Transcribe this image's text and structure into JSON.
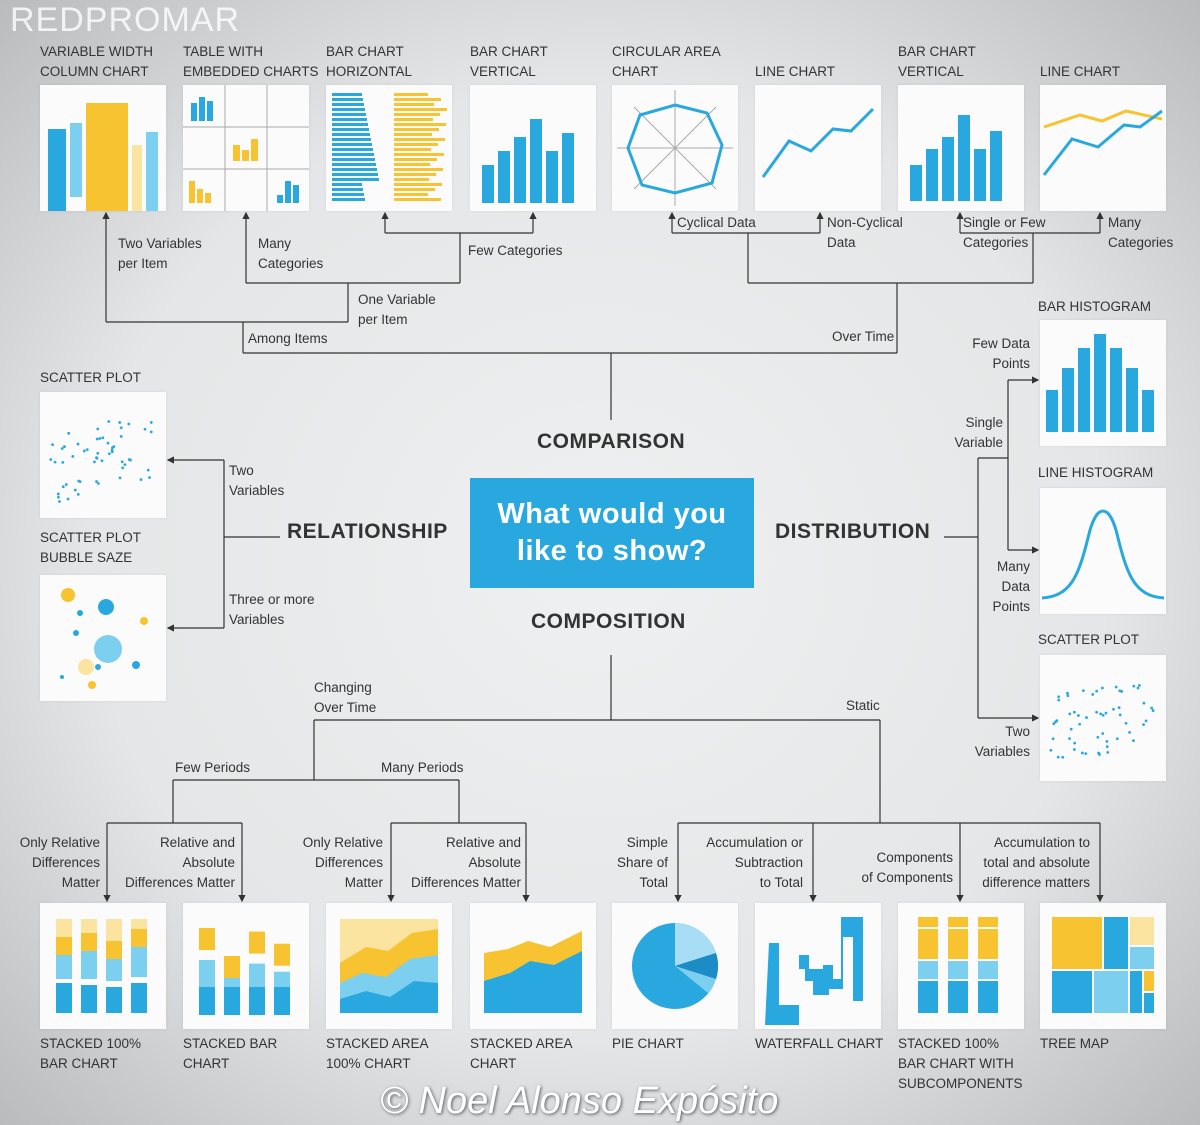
{
  "watermark": {
    "logo": "REDPROMAR",
    "copyright": "© Noel Alonso Expósito"
  },
  "center": {
    "question": "What would you like to show?"
  },
  "colors": {
    "blue": "#29a8e0",
    "yellow": "#f7c331",
    "light_blue": "#7dcff0",
    "pale_yellow": "#fbe3a0",
    "background": "#e4e6e7"
  },
  "categories": {
    "comparison": "COMPARISON",
    "relationship": "RELATIONSHIP",
    "distribution": "DISTRIBUTION",
    "composition": "COMPOSITION"
  },
  "comparison": {
    "among_items": "Among Items",
    "over_time": "Over Time",
    "two_variables": "Two Variables\nper Item",
    "one_variable": "One Variable\nper Item",
    "many_categories": "Many\nCategories",
    "few_categories": "Few Categories",
    "cyclical": "Cyclical Data",
    "non_cyclical": "Non-Cyclical\nData",
    "single_few": "Single or Few\nCategories",
    "many_categories_time": "Many\nCategories",
    "charts": [
      "VARIABLE WIDTH\nCOLUMN CHART",
      "TABLE WITH\nEMBEDDED CHARTS",
      "BAR CHART\nHORIZONTAL",
      "BAR CHART\nVERTICAL",
      "CIRCULAR AREA\nCHART",
      "LINE CHART",
      "BAR CHART\nVERTICAL",
      "LINE CHART"
    ]
  },
  "relationship": {
    "two_variables": "Two\nVariables",
    "three_more": "Three or more\nVariables",
    "charts": [
      "SCATTER PLOT",
      "SCATTER PLOT\nBUBBLE SAZE"
    ]
  },
  "distribution": {
    "single_variable": "Single\nVariable",
    "few_points": "Few Data\nPoints",
    "many_points": "Many\nData\nPoints",
    "two_variables": "Two\nVariables",
    "charts": [
      "BAR HISTOGRAM",
      "LINE HISTOGRAM",
      "SCATTER PLOT"
    ]
  },
  "composition": {
    "changing": "Changing\nOver Time",
    "static": "Static",
    "few_periods": "Few Periods",
    "many_periods": "Many Periods",
    "only_relative_1": "Only Relative\nDifferences\nMatter",
    "rel_abs_1": "Relative and\nAbsolute\nDifferences Matter",
    "only_relative_2": "Only Relative\nDifferences\nMatter",
    "rel_abs_2": "Relative and\nAbsolute\nDifferences Matter",
    "simple_share": "Simple\nShare of\nTotal",
    "accumulation": "Accumulation or\nSubtraction\nto Total",
    "components": "Components\nof Components",
    "accumulation_total": "Accumulation to\ntotal and absolute\ndifference matters",
    "charts": [
      "STACKED 100%\nBAR CHART",
      "STACKED BAR\nCHART",
      "STACKED AREA\n100% CHART",
      "STACKED AREA\nCHART",
      "PIE CHART",
      "WATERFALL CHART",
      "STACKED 100%\nBAR CHART WITH\nSUBCOMPONENTS",
      "TREE MAP"
    ]
  }
}
